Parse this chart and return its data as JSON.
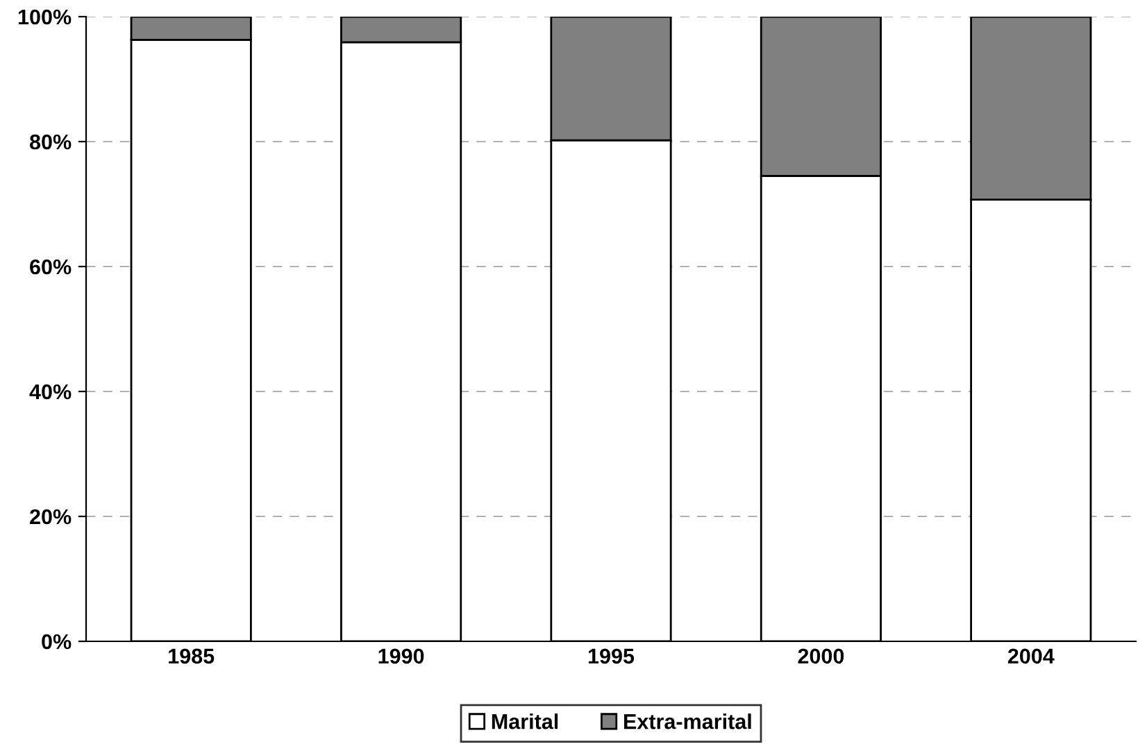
{
  "chart_data": {
    "type": "bar",
    "stacked": true,
    "categories": [
      "1985",
      "1990",
      "1995",
      "2000",
      "2004"
    ],
    "series": [
      {
        "name": "Marital",
        "color": "#ffffff",
        "values": [
          96.3,
          95.9,
          80.2,
          74.5,
          70.7
        ]
      },
      {
        "name": "Extra-marital",
        "color": "#808080",
        "values": [
          3.7,
          4.1,
          19.8,
          25.5,
          29.3
        ]
      }
    ],
    "ylim": [
      0,
      100
    ],
    "yticks": [
      {
        "value": 0,
        "label": "0%"
      },
      {
        "value": 20,
        "label": "20%"
      },
      {
        "value": 40,
        "label": "40%"
      },
      {
        "value": 60,
        "label": "60%"
      },
      {
        "value": 80,
        "label": "80%"
      },
      {
        "value": 100,
        "label": "100%"
      }
    ],
    "grid": "y",
    "legend": "bottom"
  }
}
